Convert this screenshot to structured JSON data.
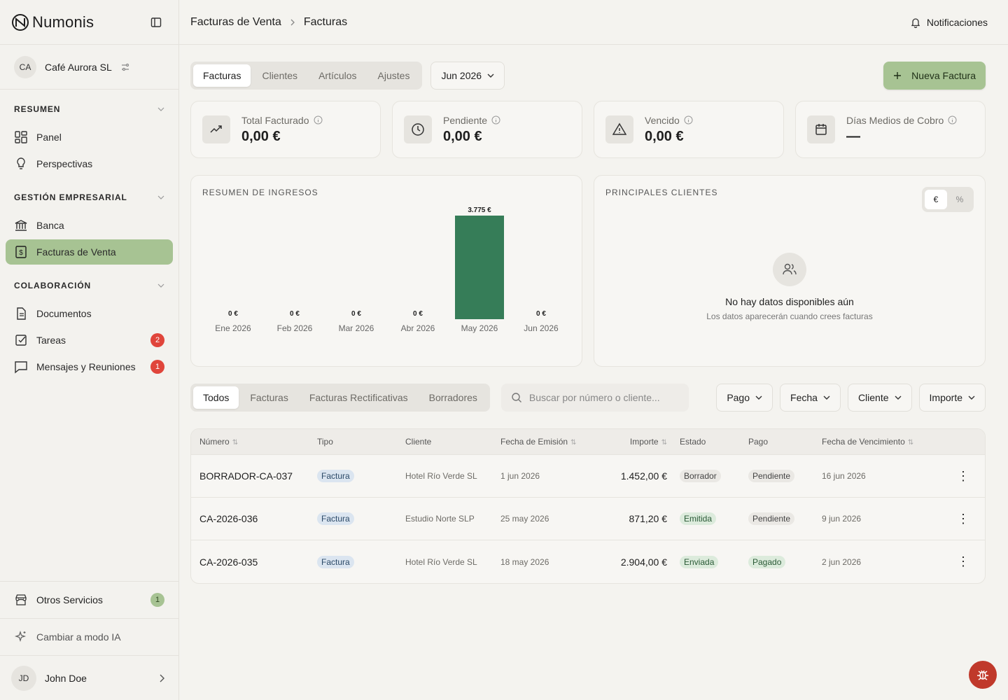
{
  "app": {
    "name": "Numonis"
  },
  "company": {
    "initials": "CA",
    "name": "Café Aurora SL"
  },
  "sidebar": {
    "sections": [
      {
        "title": "RESUMEN",
        "items": [
          {
            "label": "Panel"
          },
          {
            "label": "Perspectivas"
          }
        ]
      },
      {
        "title": "GESTIÓN EMPRESARIAL",
        "items": [
          {
            "label": "Banca"
          },
          {
            "label": "Facturas de Venta"
          }
        ]
      },
      {
        "title": "COLABORACIÓN",
        "items": [
          {
            "label": "Documentos"
          },
          {
            "label": "Tareas",
            "badge": "2"
          },
          {
            "label": "Mensajes y Reuniones",
            "badge": "1"
          }
        ]
      }
    ],
    "other_services": {
      "label": "Otros Servicios",
      "badge": "1"
    },
    "ai_mode": "Cambiar a modo IA",
    "user": {
      "initials": "JD",
      "name": "John Doe"
    }
  },
  "header": {
    "breadcrumb": [
      "Facturas de Venta",
      "Facturas"
    ],
    "notifications": "Notificaciones"
  },
  "tabs": [
    "Facturas",
    "Clientes",
    "Artículos",
    "Ajustes"
  ],
  "period": "Jun 2026",
  "new_invoice": "Nueva Factura",
  "kpis": [
    {
      "label": "Total Facturado",
      "value": "0,00 €",
      "icon": "trending-up-icon"
    },
    {
      "label": "Pendiente",
      "value": "0,00 €",
      "icon": "clock-icon"
    },
    {
      "label": "Vencido",
      "value": "0,00 €",
      "icon": "alert-triangle-icon"
    },
    {
      "label": "Días Medios de Cobro",
      "value": "—",
      "icon": "calendar-icon"
    }
  ],
  "income_panel": {
    "title": "RESUMEN DE INGRESOS"
  },
  "chart_data": {
    "type": "bar",
    "title": "RESUMEN DE INGRESOS",
    "categories": [
      "Ene 2026",
      "Feb 2026",
      "Mar 2026",
      "Abr 2026",
      "May 2026",
      "Jun 2026"
    ],
    "values": [
      0,
      0,
      0,
      0,
      3775,
      0
    ],
    "data_labels": [
      "0 €",
      "0 €",
      "0 €",
      "0 €",
      "3.775 €",
      "0 €"
    ],
    "bar_color": "#367d58",
    "grid": false
  },
  "clients_panel": {
    "title": "PRINCIPALES CLIENTES",
    "toggle": [
      "€",
      "%"
    ],
    "empty_title": "No hay datos disponibles aún",
    "empty_sub": "Los datos aparecerán cuando crees facturas"
  },
  "list_tabs": [
    "Todos",
    "Facturas",
    "Facturas Rectificativas",
    "Borradores"
  ],
  "search": {
    "placeholder": "Buscar por número o cliente..."
  },
  "filters": [
    "Pago",
    "Fecha",
    "Cliente",
    "Importe"
  ],
  "table": {
    "headers": [
      "Número",
      "Tipo",
      "Cliente",
      "Fecha de Emisión",
      "Importe",
      "Estado",
      "Pago",
      "Fecha de Vencimiento"
    ],
    "rows": [
      {
        "numero": "BORRADOR-CA-037",
        "tipo": "Factura",
        "cliente": "Hotel Río Verde SL",
        "fecha": "1 jun 2026",
        "importe": "1.452,00 €",
        "estado": "Borrador",
        "pago": "Pendiente",
        "vencimiento": "16 jun 2026"
      },
      {
        "numero": "CA-2026-036",
        "tipo": "Factura",
        "cliente": "Estudio Norte SLP",
        "fecha": "25 may 2026",
        "importe": "871,20 €",
        "estado": "Emitida",
        "pago": "Pendiente",
        "vencimiento": "9 jun 2026"
      },
      {
        "numero": "CA-2026-035",
        "tipo": "Factura",
        "cliente": "Hotel Río Verde SL",
        "fecha": "18 may 2026",
        "importe": "2.904,00 €",
        "estado": "Enviada",
        "pago": "Pagado",
        "vencimiento": "2 jun 2026"
      }
    ]
  },
  "colors": {
    "accent": "#a7c393",
    "bar": "#367d58",
    "danger": "#e0453b"
  }
}
